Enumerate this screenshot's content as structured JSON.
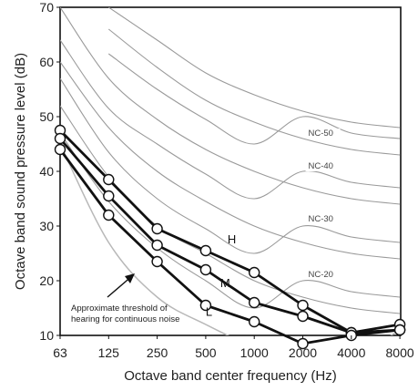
{
  "chart_data": {
    "type": "line",
    "title": "",
    "xlabel": "Octave band center frequency (Hz)",
    "ylabel": "Octave band  sound pressure level (dB)",
    "x_scale": "log",
    "categories": [
      "63",
      "125",
      "250",
      "500",
      "1000",
      "2000",
      "4000",
      "8000"
    ],
    "x": [
      63,
      125,
      250,
      500,
      1000,
      2000,
      4000,
      8000
    ],
    "ylim": [
      10,
      70
    ],
    "yticks": [
      10,
      20,
      30,
      40,
      50,
      60,
      70
    ],
    "nc_curves": [
      {
        "label": "",
        "values": [
          null,
          70,
          64,
          58,
          54,
          51,
          49,
          48
        ]
      },
      {
        "label": "",
        "values": [
          null,
          66,
          59,
          53,
          49,
          46,
          44,
          43
        ]
      },
      {
        "label": "NC-50",
        "values": [
          null,
          61.5,
          55,
          49.5,
          45,
          50,
          47,
          46
        ]
      },
      {
        "label": "",
        "values": [
          70,
          57,
          49.5,
          44,
          40,
          37,
          35,
          34
        ]
      },
      {
        "label": "NC-40",
        "values": [
          64,
          51.5,
          45,
          39.5,
          35,
          40,
          38,
          37
        ]
      },
      {
        "label": "",
        "values": [
          60,
          48,
          40,
          34.5,
          30,
          27,
          25,
          24
        ]
      },
      {
        "label": "NC-30",
        "values": [
          57,
          43.5,
          35,
          29.5,
          25,
          30,
          28,
          27
        ]
      },
      {
        "label": "",
        "values": [
          52,
          39,
          30,
          25,
          20,
          17,
          15,
          14
        ]
      },
      {
        "label": "NC-20",
        "values": [
          47,
          34.5,
          26,
          20,
          15,
          20,
          18,
          17
        ]
      }
    ],
    "threshold": {
      "label": "Approximate threshold of hearing for continuous noise",
      "values": [
        45,
        27,
        17,
        12,
        8,
        6,
        6,
        11
      ]
    },
    "series": [
      {
        "name": "H",
        "values": [
          47.5,
          38.5,
          29.5,
          25.5,
          21.5,
          15.5,
          10.5,
          12
        ]
      },
      {
        "name": "M",
        "values": [
          46,
          35.5,
          26.5,
          22,
          16,
          13.5,
          10.5,
          11
        ]
      },
      {
        "name": "L",
        "values": [
          44,
          32,
          23.5,
          15.5,
          12.5,
          8.5,
          10,
          11
        ]
      }
    ],
    "grid": false
  }
}
